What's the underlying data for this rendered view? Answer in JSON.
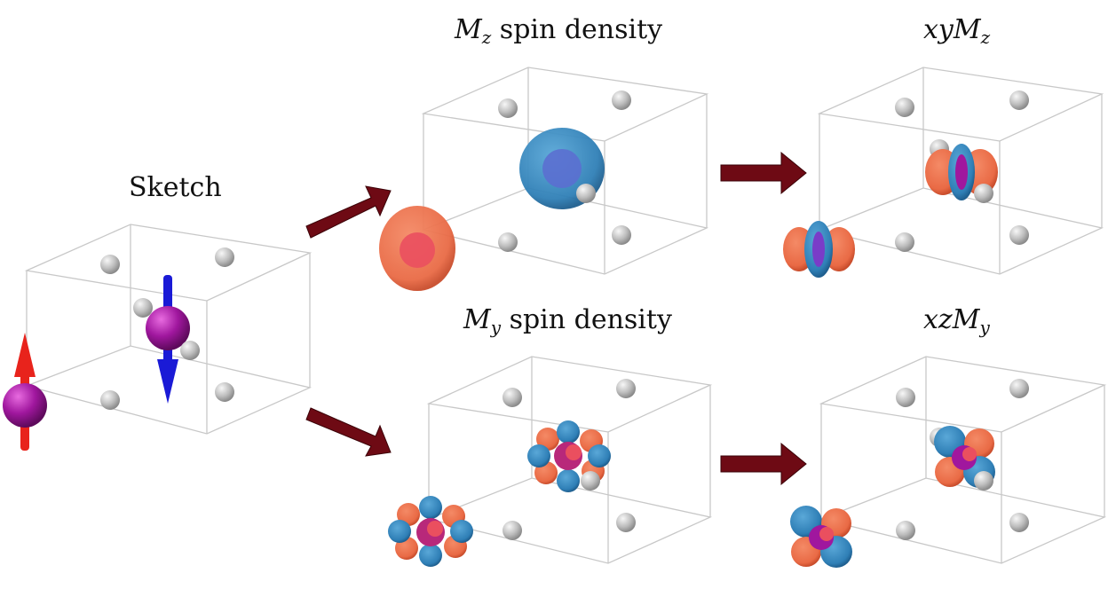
{
  "labels": {
    "sketch": "Sketch",
    "mz_symbol": "M",
    "mz_sub": "z",
    "mz_rest": " spin density",
    "my_symbol": "M",
    "my_sub": "y",
    "my_rest": " spin density",
    "xymz_prefix": "xyM",
    "xymz_sub": "z",
    "xzmy_prefix": "xzM",
    "xzmy_sub": "y"
  },
  "colors": {
    "spin_up_arrow": "#e8231c",
    "spin_down_arrow": "#1a1ad6",
    "magnetic_atom": "#a0179e",
    "ligand_atom": "#b8b8b8",
    "positive_density": "#f07a55",
    "negative_density": "#3f8fc4",
    "flow_arrow": "#6e0a14",
    "cell_edge": "#c8c8c8"
  },
  "icons": [
    "spin-up-arrow-icon",
    "spin-down-arrow-icon",
    "flow-arrow-icon"
  ]
}
